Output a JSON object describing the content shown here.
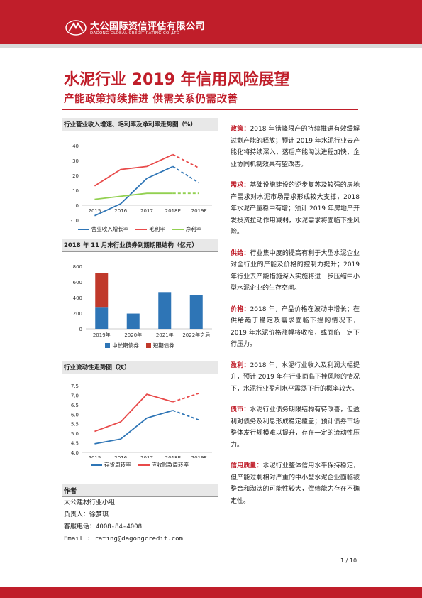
{
  "header": {
    "brand_cn": "大公国际资信评估有限公司",
    "brand_en": "DAGONG GLOBAL CREDIT RATING CO.,LTD"
  },
  "title": "水泥行业 2019 年信用风险展望",
  "subtitle": "产能政策持续推进   供需关系仍需改善",
  "chart1": {
    "heading": "行业营业收入增速、毛利率及净利率走势图（%）",
    "legend": [
      "营业收入增长率",
      "毛利率",
      "净利率"
    ]
  },
  "chart2": {
    "heading": "2018 年 11 月末行业债券到期期限结构（亿元）",
    "legend": [
      "中长期债券",
      "短期债券"
    ]
  },
  "chart3": {
    "heading": "行业流动性走势图（次）",
    "legend": [
      "存货周转率",
      "应收账款周转率"
    ]
  },
  "chart_data": [
    {
      "type": "line",
      "categories": [
        "2015",
        "2016",
        "2017",
        "2018E",
        "2019F"
      ],
      "ylim": [
        -10,
        40
      ],
      "yticks": [
        "-10",
        "0",
        "10",
        "20",
        "30",
        "40"
      ],
      "series": [
        {
          "name": "营业收入增长率",
          "values": [
            -7,
            1,
            18,
            26,
            15
          ],
          "color": "#2e75b6"
        },
        {
          "name": "毛利率",
          "values": [
            13,
            24,
            26,
            34,
            25
          ],
          "color": "#e84a4a"
        },
        {
          "name": "净利率",
          "values": [
            4,
            6,
            8,
            8,
            8
          ],
          "color": "#92d050"
        }
      ]
    },
    {
      "type": "bar",
      "categories": [
        "2019年",
        "2020年",
        "2021年",
        "2022年之后"
      ],
      "ylim": [
        0,
        800
      ],
      "yticks": [
        "0",
        "200",
        "400",
        "600",
        "800"
      ],
      "series": [
        {
          "name": "中长期债券",
          "values": [
            280,
            195,
            470,
            430
          ],
          "color": "#2e75b6"
        },
        {
          "name": "短期债券",
          "values": [
            430,
            0,
            0,
            0
          ],
          "color": "#c0392b"
        }
      ]
    },
    {
      "type": "line",
      "categories": [
        "2015",
        "2016",
        "2017",
        "2018E",
        "2019F"
      ],
      "ylim": [
        4.0,
        7.5
      ],
      "yticks": [
        "4.0",
        "4.5",
        "5.0",
        "5.5",
        "6.0",
        "6.5",
        "7.0",
        "7.5"
      ],
      "series": [
        {
          "name": "存货周转率",
          "values": [
            4.45,
            4.7,
            5.8,
            6.2,
            5.7
          ],
          "color": "#2e75b6"
        },
        {
          "name": "应收账款周转率",
          "values": [
            5.1,
            5.6,
            7.05,
            6.65,
            7.1
          ],
          "color": "#e84a4a"
        }
      ]
    }
  ],
  "author": {
    "heading": "作者",
    "lines": [
      "大公建材行业小组",
      "负责人：徐梦琪",
      "客服电话：4008-84-4008",
      "Email    : rating@dagongcredit.com"
    ]
  },
  "paragraphs": [
    {
      "kw": "政策：",
      "text": "2018 年错峰限产的持续推进有效缓解过剩产能的释放；预计 2019 年水泥行业去产能化将持续深入，落后产能淘汰进程加快，企业协同机制效果有望改善。"
    },
    {
      "kw": "需求：",
      "text": "基础设施建设的逆步复苏及较强的房地产需求对水泥市场需求形成较大支撑，2018 年水泥产量稳中有增；预计 2019 年房地产开发投资拉动作用减弱，水泥需求将面临下挫风险。"
    },
    {
      "kw": "供给：",
      "text": "行业集中度的提高有利于大型水泥企业对全行业的产能及价格的控制力提升；2019 年行业去产能措施深入实施将进一步压缩中小型水泥企业的生存空间。"
    },
    {
      "kw": "价格：",
      "text": "2018 年，产品价格在波动中增长；在供给趋于稳定及需求面临下挫的情况下，2019 年水泥价格涨幅将收窄，或面临一定下行压力。"
    },
    {
      "kw": "盈利：",
      "text": "2018 年，水泥行业收入及利润大幅提升，预计 2019 年在行业面临下挫风险的情况下，水泥行业盈利水平震荡下行的概率较大。"
    },
    {
      "kw": "债市：",
      "text": "水泥行业债务期限结构有待改善，但盈利对债务及利息形成稳定覆盖；预计债券市场整体发行规模难以提升，存在一定的流动性压力。"
    },
    {
      "kw": "信用质量：",
      "text": "水泥行业整体信用水平保持稳定，但产能过剩相对严重的中小型水泥企业面临被整合和淘汰的可能性较大，偿债能力存在不确定性。"
    }
  ],
  "page_num": "1 / 10",
  "colors": {
    "brand": "#c01e2a"
  }
}
